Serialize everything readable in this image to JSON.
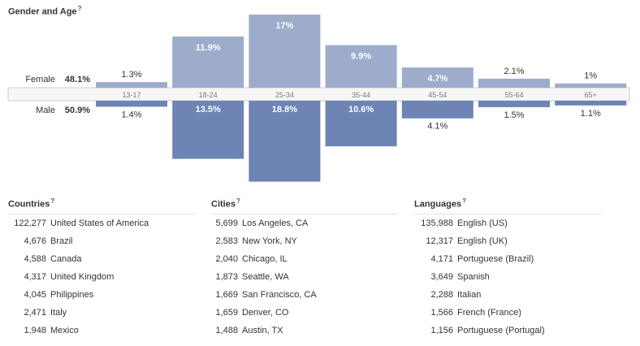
{
  "gender_age": {
    "title": "Gender and Age",
    "help": "?"
  },
  "chart_data": {
    "type": "bar",
    "title": "Gender and Age",
    "categories": [
      "13-17",
      "18-24",
      "25-34",
      "35-44",
      "45-54",
      "55-64",
      "65+"
    ],
    "series": [
      {
        "name": "Female",
        "total": "48.1%",
        "values": [
          1.3,
          11.9,
          17,
          9.9,
          4.7,
          2.1,
          1
        ],
        "labels": [
          "1.3%",
          "11.9%",
          "17%",
          "9.9%",
          "4.7%",
          "2.1%",
          "1%"
        ],
        "color": "#9daccb"
      },
      {
        "name": "Male",
        "total": "50.9%",
        "values": [
          1.4,
          13.5,
          18.8,
          10.6,
          4.1,
          1.5,
          1.1
        ],
        "labels": [
          "1.4%",
          "13.5%",
          "18.8%",
          "10.6%",
          "4.1%",
          "1.5%",
          "1.1%"
        ],
        "color": "#6d84b4"
      }
    ]
  },
  "countries": {
    "title": "Countries",
    "help": "?",
    "rows": [
      {
        "count": "122,277",
        "name": "United States of America"
      },
      {
        "count": "4,676",
        "name": "Brazil"
      },
      {
        "count": "4,588",
        "name": "Canada"
      },
      {
        "count": "4,317",
        "name": "United Kingdom"
      },
      {
        "count": "4,045",
        "name": "Philippines"
      },
      {
        "count": "2,471",
        "name": "Italy"
      },
      {
        "count": "1,948",
        "name": "Mexico"
      }
    ]
  },
  "cities": {
    "title": "Cities",
    "help": "?",
    "rows": [
      {
        "count": "5,699",
        "name": "Los Angeles, CA"
      },
      {
        "count": "2,583",
        "name": "New York, NY"
      },
      {
        "count": "2,040",
        "name": "Chicago, IL"
      },
      {
        "count": "1,873",
        "name": "Seattle, WA"
      },
      {
        "count": "1,669",
        "name": "San Francisco, CA"
      },
      {
        "count": "1,659",
        "name": "Denver, CO"
      },
      {
        "count": "1,488",
        "name": "Austin, TX"
      }
    ]
  },
  "languages": {
    "title": "Languages",
    "help": "?",
    "rows": [
      {
        "count": "135,988",
        "name": "English (US)"
      },
      {
        "count": "12,317",
        "name": "English (UK)"
      },
      {
        "count": "4,171",
        "name": "Portuguese (Brazil)"
      },
      {
        "count": "3,649",
        "name": "Spanish"
      },
      {
        "count": "2,288",
        "name": "Italian"
      },
      {
        "count": "1,566",
        "name": "French (France)"
      },
      {
        "count": "1,156",
        "name": "Portuguese (Portugal)"
      }
    ]
  }
}
